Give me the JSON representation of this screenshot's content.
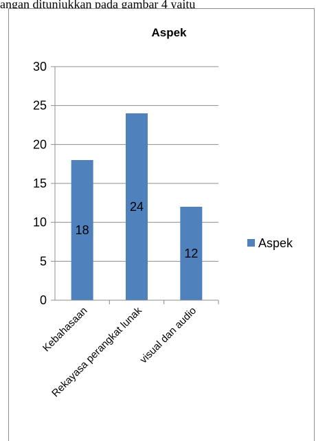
{
  "caption": "angan ditunjukkan pada gambar 4 yaitu",
  "chart_data": {
    "type": "bar",
    "title": "Aspek",
    "categories": [
      "Kebahasaan",
      "Rekayasa perangkat lunak",
      "visual dan audio"
    ],
    "series": [
      {
        "name": "Aspek",
        "values": [
          18,
          24,
          12
        ],
        "color": "#4f81bd"
      }
    ],
    "data_labels": [
      "18",
      "24",
      "12"
    ],
    "ylim": [
      0,
      30
    ],
    "yticks": [
      0,
      5,
      10,
      15,
      20,
      25,
      30
    ],
    "ytick_labels": [
      "0",
      "5",
      "10",
      "15",
      "20",
      "25",
      "30"
    ],
    "xlabel": "",
    "ylabel": "",
    "grid": true,
    "legend_position": "right"
  }
}
